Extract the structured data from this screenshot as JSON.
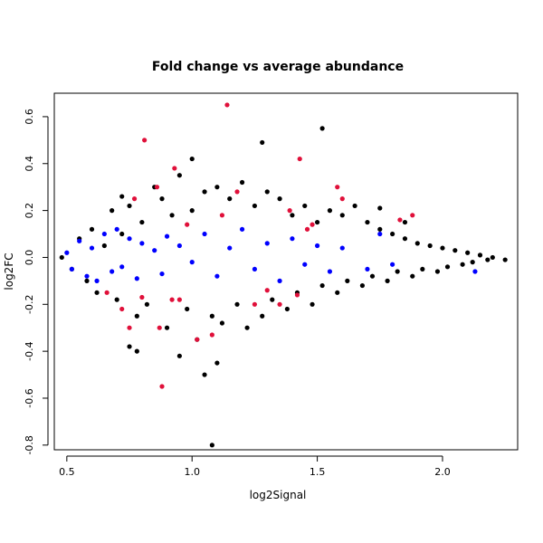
{
  "chart_data": {
    "type": "scatter",
    "title": "Fold change vs average abundance",
    "xlabel": "log2Signal",
    "ylabel": "log2FC",
    "xlim": [
      0.45,
      2.3
    ],
    "ylim": [
      -0.82,
      0.7
    ],
    "x_ticks": [
      0.5,
      1.0,
      1.5,
      2.0
    ],
    "x_tick_labels": [
      "0.5",
      "1.0",
      "1.5",
      "2.0"
    ],
    "y_ticks": [
      -0.8,
      -0.6,
      -0.4,
      -0.2,
      0.0,
      0.2,
      0.4,
      0.6
    ],
    "y_tick_labels": [
      "-0.8",
      "-0.6",
      "-0.4",
      "-0.2",
      "0.0",
      "0.2",
      "0.4",
      "0.6"
    ],
    "grid": false,
    "colors": {
      "black": "#000000",
      "blue": "#0000ff",
      "red": "#e0103a"
    },
    "series": [
      {
        "color": "black",
        "x": [
          0.48,
          0.52,
          0.55,
          0.58,
          0.6,
          0.62,
          0.65,
          0.68,
          0.7,
          0.72,
          0.75,
          0.78,
          0.8,
          0.82,
          0.85,
          0.88,
          0.9,
          0.92,
          0.95,
          0.98,
          1.0,
          1.02,
          1.05,
          1.08,
          1.1,
          1.12,
          1.15,
          1.18,
          1.2,
          1.22,
          1.25,
          1.28,
          1.3,
          1.32,
          1.35,
          1.38,
          1.4,
          1.42,
          1.45,
          1.48,
          1.5,
          1.52,
          1.55,
          1.58,
          1.6,
          1.62,
          1.65,
          1.68,
          1.7,
          1.72,
          1.75,
          1.78,
          1.8,
          1.82,
          1.85,
          1.88,
          1.9,
          1.92,
          1.95,
          1.98,
          2.0,
          2.02,
          2.05,
          2.08,
          2.1,
          2.12,
          2.15,
          2.18,
          2.2,
          2.25,
          1.52,
          1.28,
          1.08,
          1.1,
          1.05,
          0.95,
          1.0,
          1.85,
          0.78,
          0.75,
          0.72,
          1.75
        ],
        "y": [
          0.0,
          -0.05,
          0.08,
          -0.1,
          0.12,
          -0.15,
          0.05,
          0.2,
          -0.18,
          0.1,
          0.22,
          -0.25,
          0.15,
          -0.2,
          0.3,
          0.25,
          -0.3,
          0.18,
          0.35,
          -0.22,
          0.2,
          -0.35,
          0.28,
          -0.25,
          0.3,
          -0.28,
          0.25,
          -0.2,
          0.32,
          -0.3,
          0.22,
          -0.25,
          0.28,
          -0.18,
          0.25,
          -0.22,
          0.18,
          -0.15,
          0.22,
          -0.2,
          0.15,
          -0.12,
          0.2,
          -0.15,
          0.18,
          -0.1,
          0.22,
          -0.12,
          0.15,
          -0.08,
          0.12,
          -0.1,
          0.1,
          -0.06,
          0.08,
          -0.08,
          0.06,
          -0.05,
          0.05,
          -0.06,
          0.04,
          -0.04,
          0.03,
          -0.03,
          0.02,
          -0.02,
          0.01,
          -0.01,
          0.0,
          -0.01,
          0.55,
          0.49,
          -0.8,
          -0.45,
          -0.5,
          -0.42,
          0.42,
          0.15,
          -0.4,
          -0.38,
          0.26,
          0.21
        ]
      },
      {
        "color": "blue",
        "x": [
          0.5,
          0.52,
          0.55,
          0.58,
          0.6,
          0.62,
          0.65,
          0.68,
          0.7,
          0.72,
          0.75,
          0.78,
          0.8,
          0.85,
          0.88,
          0.9,
          0.95,
          1.0,
          1.05,
          1.1,
          1.15,
          1.2,
          1.25,
          1.3,
          1.35,
          1.4,
          1.45,
          1.5,
          1.55,
          1.6,
          1.7,
          1.75,
          1.8,
          2.13
        ],
        "y": [
          0.02,
          -0.05,
          0.07,
          -0.08,
          0.04,
          -0.1,
          0.1,
          -0.06,
          0.12,
          -0.04,
          0.08,
          -0.09,
          0.06,
          0.03,
          -0.07,
          0.09,
          0.05,
          -0.02,
          0.1,
          -0.08,
          0.04,
          0.12,
          -0.05,
          0.06,
          -0.1,
          0.08,
          -0.03,
          0.05,
          -0.06,
          0.04,
          -0.05,
          0.1,
          -0.03,
          -0.06
        ]
      },
      {
        "color": "red",
        "x": [
          1.14,
          0.81,
          1.43,
          0.93,
          0.86,
          1.58,
          1.18,
          0.77,
          1.39,
          1.6,
          1.83,
          1.88,
          0.72,
          1.48,
          0.92,
          0.88,
          1.35,
          0.75,
          0.66,
          1.02,
          1.08,
          0.87,
          1.42,
          1.25,
          1.12,
          0.8,
          0.98,
          0.95,
          1.3,
          1.46
        ],
        "y": [
          0.65,
          0.5,
          0.42,
          0.38,
          0.3,
          0.3,
          0.28,
          0.25,
          0.2,
          0.25,
          0.16,
          0.18,
          -0.22,
          0.14,
          -0.18,
          -0.55,
          -0.2,
          -0.3,
          -0.15,
          -0.35,
          -0.33,
          -0.3,
          -0.16,
          -0.2,
          0.18,
          -0.17,
          0.14,
          -0.18,
          -0.14,
          0.12
        ]
      }
    ]
  }
}
